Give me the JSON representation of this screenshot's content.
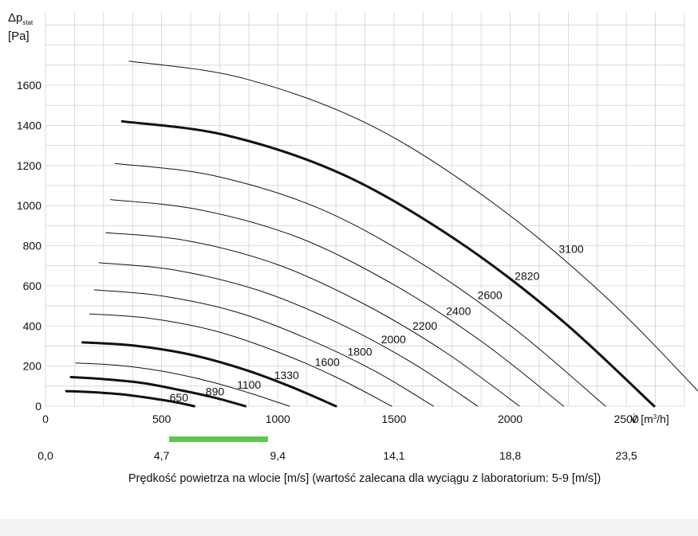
{
  "chart_data": {
    "type": "line",
    "title": "",
    "ylabel_main": "Δp",
    "ylabel_sub": "stat",
    "ylabel_unit": "[Pa]",
    "xlabel_main": "V̇ [m",
    "xlabel_sup": "3",
    "xlabel_tail": "/h]",
    "xlim": [
      0,
      2750
    ],
    "ylim": [
      0,
      1800
    ],
    "x_ticks": [
      "0",
      "500",
      "1000",
      "1500",
      "2000",
      "2500"
    ],
    "x_tick_values": [
      0,
      500,
      1000,
      1500,
      2000,
      2500
    ],
    "y_ticks": [
      "0",
      "200",
      "400",
      "600",
      "800",
      "1000",
      "1200",
      "1400",
      "1600"
    ],
    "y_tick_values": [
      0,
      200,
      400,
      600,
      800,
      1000,
      1200,
      1400,
      1600
    ],
    "grid": true,
    "grid_x_step": 125,
    "grid_y_step": 100,
    "series": [
      {
        "name": "650",
        "bold": true,
        "x": [
          90,
          200,
          320,
          440,
          560,
          640
        ],
        "y": [
          75,
          70,
          60,
          42,
          20,
          0
        ]
      },
      {
        "name": "890",
        "bold": true,
        "x": [
          110,
          250,
          420,
          580,
          730,
          860
        ],
        "y": [
          145,
          135,
          115,
          80,
          42,
          0
        ]
      },
      {
        "name": "1100",
        "bold": false,
        "x": [
          130,
          300,
          500,
          700,
          880,
          1050
        ],
        "y": [
          215,
          205,
          175,
          125,
          65,
          0
        ]
      },
      {
        "name": "1330",
        "bold": true,
        "x": [
          160,
          380,
          620,
          850,
          1050,
          1250
        ],
        "y": [
          318,
          302,
          258,
          185,
          100,
          0
        ]
      },
      {
        "name": "1600",
        "bold": false,
        "x": [
          190,
          450,
          730,
          1000,
          1250,
          1490
        ],
        "y": [
          460,
          438,
          375,
          270,
          145,
          0
        ]
      },
      {
        "name": "1800",
        "bold": false,
        "x": [
          210,
          500,
          820,
          1120,
          1410,
          1670
        ],
        "y": [
          580,
          550,
          470,
          340,
          180,
          0
        ]
      },
      {
        "name": "2000",
        "bold": false,
        "x": [
          230,
          550,
          910,
          1250,
          1570,
          1860
        ],
        "y": [
          715,
          680,
          580,
          420,
          222,
          0
        ]
      },
      {
        "name": "2200",
        "bold": false,
        "x": [
          260,
          610,
          1000,
          1370,
          1720,
          2040
        ],
        "y": [
          865,
          825,
          705,
          510,
          270,
          0
        ]
      },
      {
        "name": "2400",
        "bold": false,
        "x": [
          280,
          660,
          1090,
          1500,
          1880,
          2230
        ],
        "y": [
          1030,
          980,
          840,
          605,
          320,
          0
        ]
      },
      {
        "name": "2600",
        "bold": false,
        "x": [
          300,
          720,
          1180,
          1620,
          2030,
          2410
        ],
        "y": [
          1210,
          1150,
          985,
          710,
          375,
          0
        ]
      },
      {
        "name": "2820",
        "bold": true,
        "x": [
          330,
          780,
          1280,
          1760,
          2210,
          2620
        ],
        "y": [
          1420,
          1350,
          1155,
          835,
          440,
          0
        ]
      },
      {
        "name": "3100",
        "bold": false,
        "x": [
          360,
          850,
          1400,
          1930,
          2420,
          2870
        ],
        "y": [
          1720,
          1635,
          1400,
          1010,
          535,
          0
        ]
      }
    ],
    "velocity_axis": {
      "label": "Prędkość powietrza na wlocie [m/s] (wartość zalecana dla wyciągu z laboratorium: 5-9 [m/s])",
      "ticks": [
        "0,0",
        "4,7",
        "9,4",
        "14,1",
        "18,8",
        "23,5",
        "28,2"
      ],
      "tick_values": [
        0,
        4.7,
        9.4,
        14.1,
        18.8,
        23.5,
        28.2
      ],
      "m3h_per_ms": 106.383,
      "recommended_range": [
        5,
        9
      ],
      "recommended_color": "#5cc84a"
    }
  }
}
